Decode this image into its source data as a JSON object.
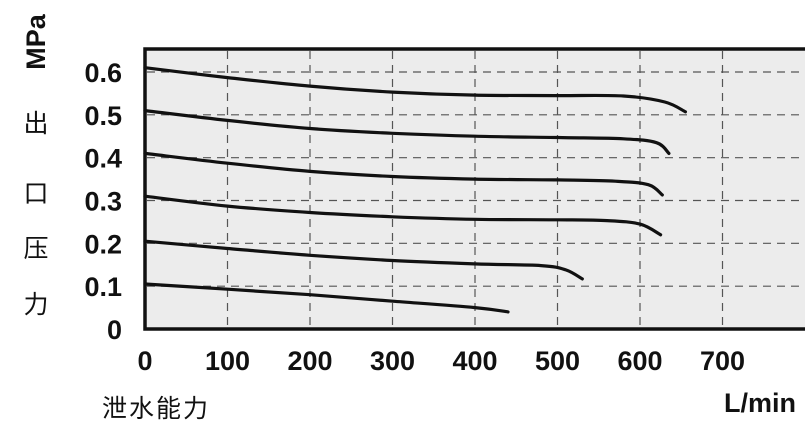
{
  "chart_data": {
    "type": "line",
    "y_unit": "MPa",
    "y_title_chars": [
      "出",
      "口",
      "压",
      "力"
    ],
    "x_title": "泄水能力",
    "x_unit": "L/min",
    "xlim": [
      0,
      800
    ],
    "ylim": [
      0,
      0.6
    ],
    "x_ticks": [
      0,
      100,
      200,
      300,
      400,
      500,
      600,
      700
    ],
    "x_tick_labels": [
      "0",
      "100",
      "200",
      "300",
      "400",
      "500",
      "600",
      "700"
    ],
    "y_ticks": [
      0,
      0.1,
      0.2,
      0.3,
      0.4,
      0.5,
      0.6
    ],
    "y_tick_labels": [
      "0",
      "0.1",
      "0.2",
      "0.3",
      "0.4",
      "0.5",
      "0.6"
    ],
    "grid": true,
    "series": [
      {
        "x": [
          0,
          100,
          200,
          300,
          400,
          440
        ],
        "y": [
          0.105,
          0.093,
          0.08,
          0.065,
          0.05,
          0.04
        ]
      },
      {
        "x": [
          0,
          100,
          200,
          300,
          400,
          480,
          510,
          530
        ],
        "y": [
          0.205,
          0.188,
          0.172,
          0.16,
          0.152,
          0.148,
          0.138,
          0.117
        ]
      },
      {
        "x": [
          0,
          100,
          200,
          300,
          400,
          500,
          560,
          600,
          625
        ],
        "y": [
          0.31,
          0.287,
          0.272,
          0.262,
          0.256,
          0.255,
          0.253,
          0.245,
          0.22
        ]
      },
      {
        "x": [
          0,
          100,
          200,
          300,
          400,
          500,
          570,
          610,
          627
        ],
        "y": [
          0.41,
          0.387,
          0.368,
          0.356,
          0.35,
          0.348,
          0.345,
          0.337,
          0.313
        ]
      },
      {
        "x": [
          0,
          100,
          200,
          300,
          400,
          500,
          580,
          620,
          635
        ],
        "y": [
          0.51,
          0.487,
          0.468,
          0.457,
          0.45,
          0.447,
          0.444,
          0.435,
          0.41
        ]
      },
      {
        "x": [
          0,
          100,
          200,
          300,
          400,
          500,
          580,
          630,
          655
        ],
        "y": [
          0.61,
          0.587,
          0.567,
          0.553,
          0.546,
          0.545,
          0.544,
          0.53,
          0.507
        ]
      }
    ]
  }
}
